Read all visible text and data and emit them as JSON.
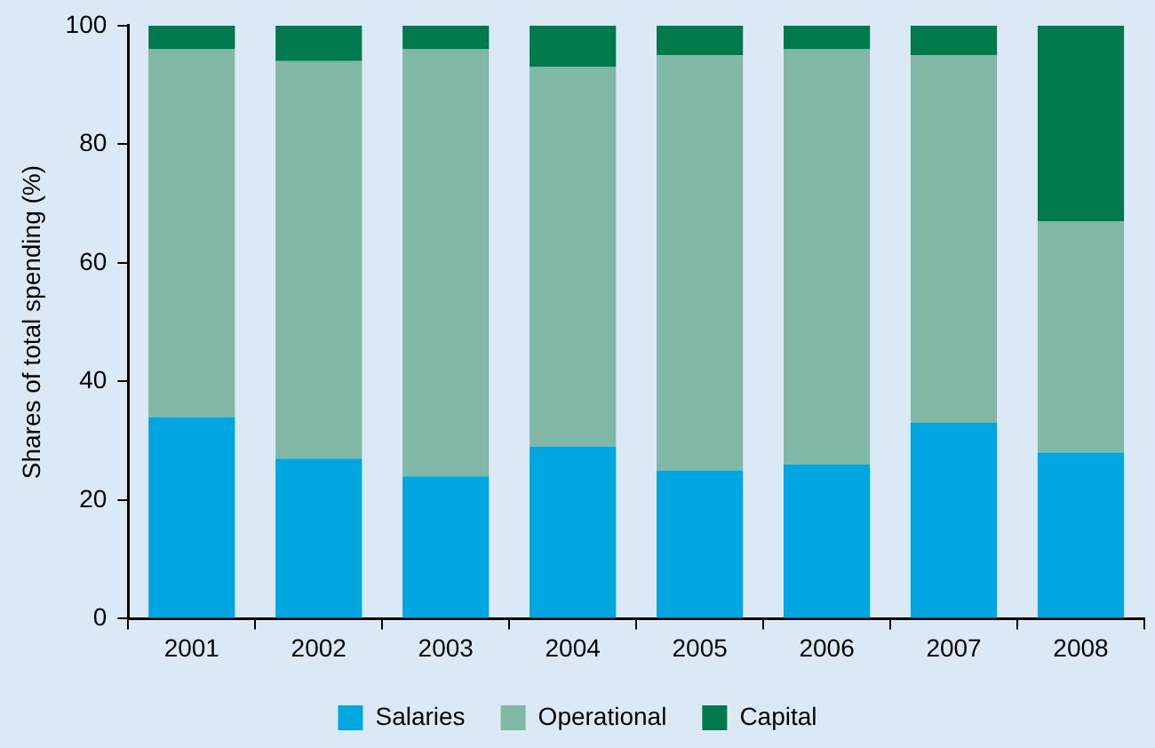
{
  "chart_data": {
    "type": "bar",
    "ylabel": "Shares of total spending (%)",
    "categories": [
      "2001",
      "2002",
      "2003",
      "2004",
      "2005",
      "2006",
      "2007",
      "2008"
    ],
    "series": [
      {
        "name": "Salaries",
        "color": "#00a6e0",
        "values": [
          34,
          27,
          24,
          29,
          25,
          26,
          33,
          28
        ]
      },
      {
        "name": "Operational",
        "color": "#80b8a5",
        "values": [
          62,
          67,
          72,
          64,
          70,
          70,
          62,
          39
        ]
      },
      {
        "name": "Capital",
        "color": "#007a4d",
        "values": [
          4,
          6,
          4,
          7,
          5,
          4,
          5,
          33
        ]
      }
    ],
    "stacked": true,
    "ylim": [
      0,
      100
    ],
    "yticks": [
      0,
      20,
      40,
      60,
      80,
      100
    ],
    "grid": false,
    "legend": "bottom"
  }
}
